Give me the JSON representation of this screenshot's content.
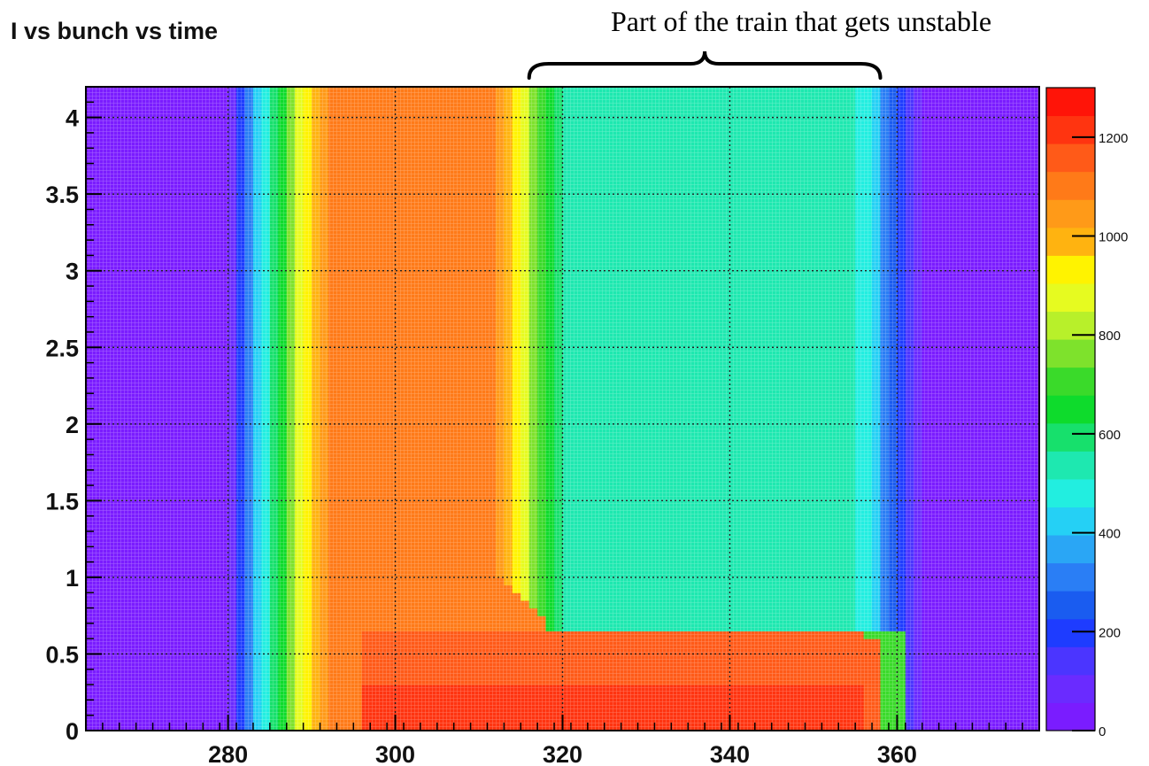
{
  "chart_data": {
    "type": "heatmap",
    "title": "I vs bunch vs time",
    "xlabel": "",
    "ylabel": "",
    "xlim": [
      263,
      377
    ],
    "ylim": [
      0,
      4.2
    ],
    "x_ticks": [
      280,
      300,
      320,
      340,
      360
    ],
    "y_ticks": [
      0,
      0.5,
      1,
      1.5,
      2,
      2.5,
      3,
      3.5,
      4
    ],
    "y_tick_labels": [
      "0",
      "0.5",
      "1",
      "1.5",
      "2",
      "2.5",
      "3",
      "3.5",
      "4"
    ],
    "z_range": [
      0,
      1300
    ],
    "z_ticks": [
      0,
      200,
      400,
      600,
      800,
      1000,
      1200
    ],
    "grid": true,
    "colorbar": "right",
    "palette": [
      "#7a1cff",
      "#6a2bff",
      "#4b35ff",
      "#1e3cff",
      "#1a5cf0",
      "#2a7ef5",
      "#2aa6f5",
      "#25d0f5",
      "#22eee0",
      "#1ee8b0",
      "#17e06c",
      "#0edb2c",
      "#3ada2a",
      "#7ee22c",
      "#b8f02a",
      "#e6fb20",
      "#fff300",
      "#ffb310",
      "#ff9a18",
      "#ff7a18",
      "#ff5a18",
      "#ff3410",
      "#ff1408"
    ],
    "description_points": {
      "stable_plateau_z": 1100,
      "unstable_region_z": 500,
      "low_intensity_peak_z": 1200
    },
    "profile_x": [
      263,
      279,
      281,
      283,
      285,
      287,
      289,
      291,
      293,
      311,
      313,
      315,
      317,
      319,
      321,
      355,
      357,
      359,
      361,
      363,
      365,
      377
    ],
    "profile_z": [
      0,
      0,
      150,
      350,
      550,
      720,
      900,
      1000,
      1100,
      1100,
      1000,
      900,
      720,
      600,
      520,
      520,
      430,
      300,
      150,
      60,
      0,
      0
    ]
  },
  "annotation": {
    "text": "Part of the train that gets unstable",
    "x_start": 316,
    "x_end": 358
  }
}
